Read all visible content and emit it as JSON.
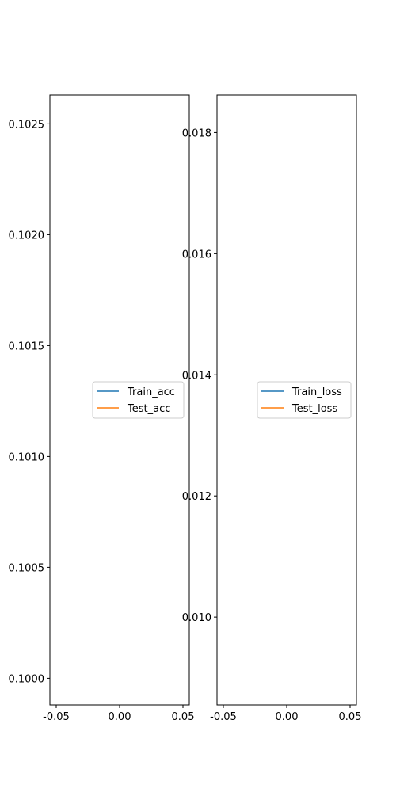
{
  "chart_data": [
    {
      "type": "line",
      "title": "",
      "xlabel": "",
      "ylabel": "",
      "xlim": [
        -0.055,
        0.055
      ],
      "ylim": [
        0.09988,
        0.10263
      ],
      "xticks": [
        "-0.05",
        "0.00",
        "0.05"
      ],
      "yticks": [
        "0.1000",
        "0.1005",
        "0.1010",
        "0.1015",
        "0.1020",
        "0.1025"
      ],
      "legend_position": "center-right",
      "series": [
        {
          "name": "Train_acc",
          "color": "#1f77b4",
          "x": [],
          "y": []
        },
        {
          "name": "Test_acc",
          "color": "#ff7f0e",
          "x": [],
          "y": []
        }
      ]
    },
    {
      "type": "line",
      "title": "",
      "xlabel": "",
      "ylabel": "",
      "xlim": [
        -0.055,
        0.055
      ],
      "ylim": [
        0.00855,
        0.01862
      ],
      "xticks": [
        "-0.05",
        "0.00",
        "0.05"
      ],
      "yticks": [
        "0.010",
        "0.012",
        "0.014",
        "0.016",
        "0.018"
      ],
      "legend_position": "center-right",
      "series": [
        {
          "name": "Train_loss",
          "color": "#1f77b4",
          "x": [],
          "y": []
        },
        {
          "name": "Test_loss",
          "color": "#ff7f0e",
          "x": [],
          "y": []
        }
      ]
    }
  ]
}
